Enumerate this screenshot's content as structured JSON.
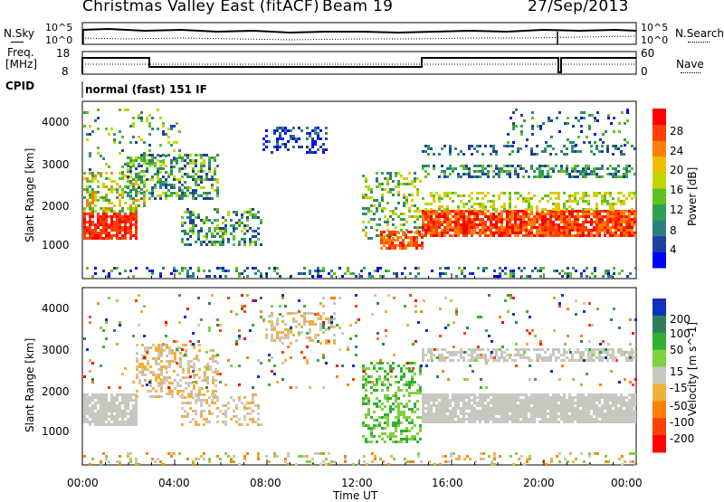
{
  "header": {
    "station": "Christmas Valley East (fitACF)",
    "beam": "Beam 19",
    "date": "27/Sep/2013"
  },
  "noise_panel": {
    "left_label": "N.Sky",
    "right_label": "N.Search",
    "left_ticks": [
      "10^5",
      "10^0"
    ],
    "right_ticks": [
      "10^5",
      "10^0"
    ]
  },
  "freq_panel": {
    "left_label_line1": "Freq.",
    "left_label_line2": "[MHz]",
    "right_label": "Nave",
    "left_ticks": [
      "18",
      "8"
    ],
    "right_ticks": [
      "60",
      "0"
    ]
  },
  "cpid": {
    "label": "CPID",
    "mode": "normal (fast) 151 IF"
  },
  "chart_data": [
    {
      "type": "heatmap",
      "name": "power",
      "ylabel": "Slant Range [km]",
      "yticks": [
        "4000",
        "3000",
        "2000",
        "1000"
      ],
      "colorbar_label": "Power [dB]",
      "colorbar_ticks": [
        "28",
        "24",
        "20",
        "16",
        "12",
        "8",
        "4"
      ],
      "colors": [
        "#0000ff",
        "#1f3fa0",
        "#2f7f7f",
        "#30a050",
        "#60c020",
        "#c0d800",
        "#f0c000",
        "#ff8000",
        "#ff4000",
        "#ff0000"
      ]
    },
    {
      "type": "heatmap",
      "name": "velocity",
      "ylabel": "Slant Range [km]",
      "yticks": [
        "4000",
        "3000",
        "2000",
        "1000"
      ],
      "colorbar_label": "Velocity [m s^-1]",
      "colorbar_ticks": [
        "200",
        "100",
        "50",
        "15",
        "-15",
        "-50",
        "-100",
        "-200"
      ],
      "colors": [
        "#1030c0",
        "#2f7f5f",
        "#30b030",
        "#80d040",
        "#c8c8c0",
        "#f0b040",
        "#ff8000",
        "#ff4000",
        "#ff0000"
      ]
    }
  ],
  "xaxis": {
    "label": "Time UT",
    "ticks": [
      "00:00",
      "04:00",
      "08:00",
      "12:00",
      "16:00",
      "20:00",
      "00:00"
    ]
  }
}
